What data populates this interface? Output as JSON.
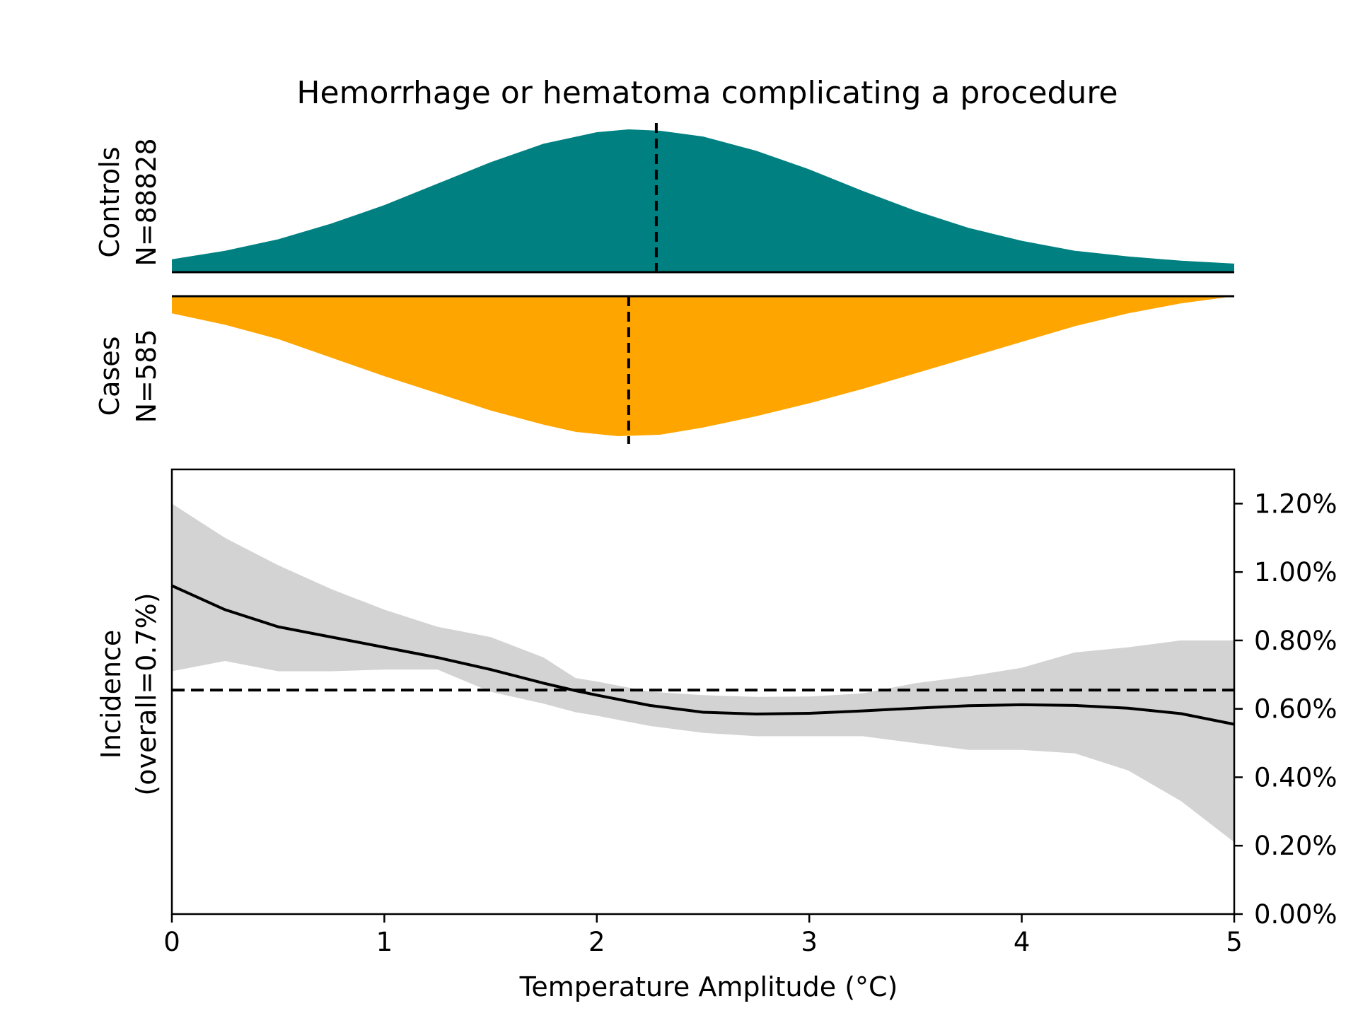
{
  "chart_data": {
    "type": "area",
    "title": "Hemorrhage or hematoma complicating a procedure",
    "xlabel": "Temperature Amplitude (°C)",
    "xlim": [
      0,
      5
    ],
    "x_ticks": [
      "0",
      "1",
      "2",
      "3",
      "4",
      "5"
    ],
    "controls": {
      "label": "Controls",
      "n_label": "N=88828",
      "color": "#008080",
      "mean_marker_x": 2.28,
      "density": {
        "x": [
          0,
          0.25,
          0.5,
          0.75,
          1.0,
          1.25,
          1.5,
          1.75,
          2.0,
          2.15,
          2.3,
          2.5,
          2.75,
          3.0,
          3.25,
          3.5,
          3.75,
          4.0,
          4.25,
          4.5,
          4.75,
          5.0
        ],
        "y": [
          0.09,
          0.15,
          0.23,
          0.34,
          0.47,
          0.62,
          0.77,
          0.9,
          0.98,
          1.0,
          0.99,
          0.95,
          0.85,
          0.72,
          0.57,
          0.43,
          0.31,
          0.22,
          0.15,
          0.11,
          0.08,
          0.06
        ]
      }
    },
    "cases": {
      "label": "Cases",
      "n_label": "N=585",
      "color": "#FFA500",
      "mean_marker_x": 2.15,
      "density": {
        "x": [
          0,
          0.25,
          0.5,
          0.75,
          1.0,
          1.25,
          1.5,
          1.75,
          1.9,
          2.1,
          2.3,
          2.5,
          2.75,
          3.0,
          3.25,
          3.5,
          3.75,
          4.0,
          4.25,
          4.5,
          4.75,
          5.0
        ],
        "y": [
          0.88,
          0.8,
          0.7,
          0.57,
          0.44,
          0.32,
          0.2,
          0.1,
          0.05,
          0.02,
          0.03,
          0.08,
          0.16,
          0.25,
          0.35,
          0.46,
          0.57,
          0.68,
          0.79,
          0.88,
          0.95,
          1.0
        ]
      }
    },
    "incidence": {
      "ylabel_line1": "Incidence",
      "ylabel_line2": "(overall=0.7%)",
      "ylim": [
        0,
        1.3
      ],
      "y_ticks": [
        "0.00%",
        "0.20%",
        "0.40%",
        "0.60%",
        "0.80%",
        "1.00%",
        "1.20%"
      ],
      "y_tick_values": [
        0,
        0.2,
        0.4,
        0.6,
        0.8,
        1.0,
        1.2
      ],
      "overall_line_y": 0.655,
      "x": [
        0,
        0.25,
        0.5,
        0.75,
        1.0,
        1.25,
        1.5,
        1.75,
        1.9,
        2.0,
        2.25,
        2.5,
        2.75,
        3.0,
        3.25,
        3.5,
        3.75,
        4.0,
        4.25,
        4.5,
        4.75,
        5.0
      ],
      "y": [
        0.96,
        0.89,
        0.84,
        0.81,
        0.78,
        0.75,
        0.715,
        0.675,
        0.653,
        0.64,
        0.61,
        0.59,
        0.585,
        0.587,
        0.594,
        0.602,
        0.609,
        0.612,
        0.61,
        0.602,
        0.586,
        0.555
      ],
      "ci_upper": [
        1.2,
        1.1,
        1.02,
        0.95,
        0.89,
        0.84,
        0.81,
        0.75,
        0.69,
        0.68,
        0.65,
        0.64,
        0.635,
        0.636,
        0.645,
        0.675,
        0.695,
        0.72,
        0.765,
        0.78,
        0.8,
        0.8
      ],
      "ci_lower": [
        0.71,
        0.74,
        0.71,
        0.71,
        0.715,
        0.715,
        0.65,
        0.615,
        0.59,
        0.58,
        0.55,
        0.53,
        0.52,
        0.52,
        0.52,
        0.5,
        0.48,
        0.48,
        0.47,
        0.42,
        0.33,
        0.21
      ]
    }
  }
}
